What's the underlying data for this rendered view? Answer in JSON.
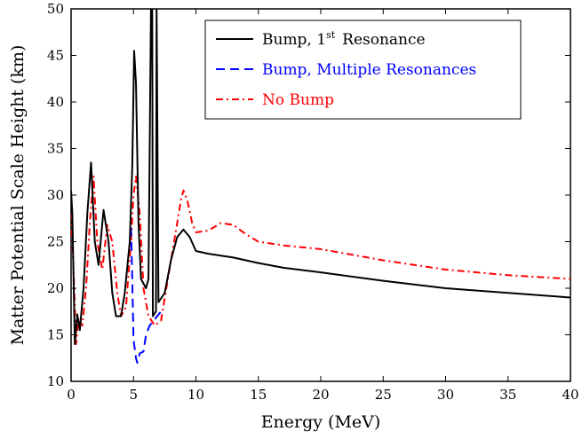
{
  "chart_data": {
    "type": "line",
    "xlabel": "Energy (MeV)",
    "ylabel": "Matter Potential Scale Height (km)",
    "xlim": [
      0,
      40
    ],
    "ylim": [
      10,
      50
    ],
    "xticks": [
      0,
      5,
      10,
      15,
      20,
      25,
      30,
      35,
      40
    ],
    "yticks": [
      10,
      15,
      20,
      25,
      30,
      35,
      40,
      45,
      50
    ],
    "grid": false,
    "legend_position": "top-right",
    "series": [
      {
        "name": "Bump, 1st Resonance",
        "name_main": "Bump, 1",
        "name_sup": "st",
        "name_tail": "Resonance",
        "color": "#000000",
        "style": "solid",
        "x": [
          0.0,
          0.1,
          0.3,
          0.5,
          0.7,
          1.0,
          1.3,
          1.6,
          1.9,
          2.2,
          2.6,
          3.0,
          3.3,
          3.6,
          4.0,
          4.3,
          4.7,
          4.9,
          5.05,
          5.2,
          5.4,
          5.6,
          6.0,
          6.2,
          6.4,
          6.5,
          6.55,
          6.8,
          6.85,
          7.0,
          7.5,
          8.0,
          8.5,
          9.0,
          9.5,
          10.0,
          11.0,
          12.0,
          13.0,
          14.0,
          15.0,
          17.0,
          20.0,
          25.0,
          30.0,
          35.0,
          40.0
        ],
        "y": [
          30.5,
          28.0,
          14.0,
          17.2,
          15.5,
          20.0,
          28.0,
          33.5,
          25.0,
          22.5,
          28.4,
          25.0,
          19.5,
          17.0,
          17.0,
          19.5,
          25.0,
          33.0,
          45.5,
          42.0,
          27.0,
          21.0,
          20.0,
          21.0,
          50.0,
          50.0,
          17.0,
          17.5,
          50.0,
          18.5,
          19.5,
          23.0,
          25.5,
          26.3,
          25.5,
          24.0,
          23.7,
          23.5,
          23.3,
          23.0,
          22.7,
          22.2,
          21.7,
          20.8,
          20.0,
          19.5,
          19.0
        ]
      },
      {
        "name": "Bump, Multiple Resonances",
        "color": "#0000ff",
        "style": "dashed",
        "x": [
          4.8,
          4.9,
          5.0,
          5.1,
          5.2,
          5.3,
          5.5,
          5.8,
          6.0,
          6.3,
          6.6,
          6.9,
          7.2
        ],
        "y": [
          26.5,
          21.0,
          14.5,
          13.5,
          12.5,
          12.0,
          13.0,
          13.2,
          15.0,
          16.0,
          16.5,
          17.0,
          17.5
        ]
      },
      {
        "name": "No Bump",
        "color": "#ff0000",
        "style": "dashdot",
        "x": [
          0.0,
          0.2,
          0.4,
          0.6,
          0.9,
          1.2,
          1.5,
          1.8,
          2.1,
          2.5,
          2.9,
          3.3,
          3.7,
          4.0,
          4.4,
          4.8,
          5.0,
          5.2,
          5.5,
          5.8,
          6.2,
          6.7,
          7.2,
          8.0,
          8.5,
          8.8,
          9.0,
          9.3,
          9.7,
          10.0,
          11.0,
          12.0,
          13.0,
          14.0,
          15.0,
          17.0,
          20.0,
          25.0,
          30.0,
          35.0,
          40.0
        ],
        "y": [
          28.0,
          22.0,
          14.0,
          16.8,
          16.0,
          20.0,
          27.0,
          32.0,
          25.0,
          22.0,
          26.8,
          25.0,
          19.5,
          17.0,
          18.0,
          25.0,
          30.0,
          32.0,
          28.0,
          20.0,
          17.0,
          16.0,
          16.5,
          23.0,
          27.0,
          29.5,
          30.5,
          29.5,
          27.0,
          26.0,
          26.2,
          27.0,
          26.8,
          25.8,
          25.0,
          24.6,
          24.2,
          23.0,
          22.0,
          21.4,
          21.0
        ]
      }
    ]
  }
}
